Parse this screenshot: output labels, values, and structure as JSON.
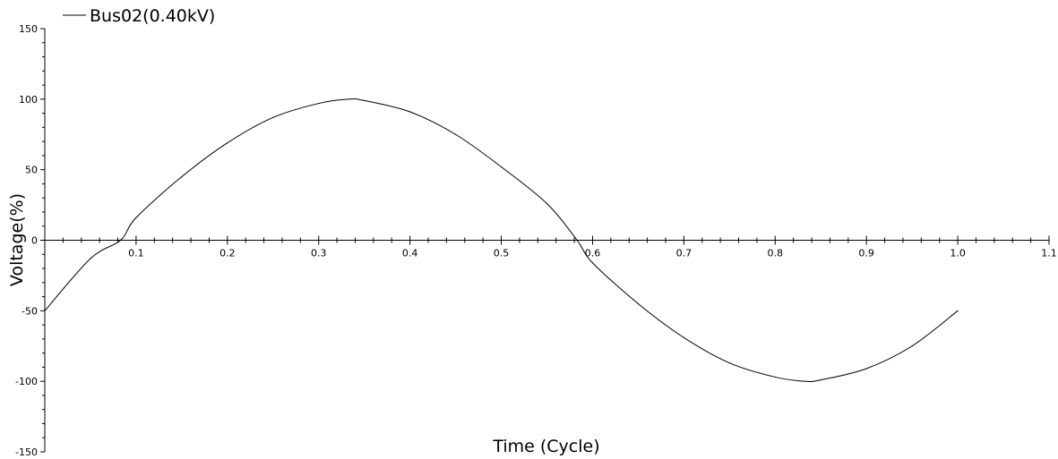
{
  "chart_data": {
    "type": "line",
    "xlabel": "Time (Cycle)",
    "ylabel": "Voltage(%)",
    "xlim": [
      0,
      1.1
    ],
    "ylim": [
      -150,
      150
    ],
    "x_ticks": [
      "0.1",
      "0.2",
      "0.3",
      "0.4",
      "0.5",
      "0.6",
      "0.7",
      "0.8",
      "0.9",
      "1.0",
      "1.1"
    ],
    "y_ticks": [
      "150",
      "100",
      "50",
      "0",
      "-50",
      "-100",
      "-150"
    ],
    "grid": false,
    "legend_position": "top-left",
    "series": [
      {
        "name": "Bus02(0.40kV)",
        "color": "#000000",
        "x": [
          0.0,
          0.05,
          0.083,
          0.1,
          0.15,
          0.2,
          0.25,
          0.3,
          0.333,
          0.35,
          0.4,
          0.45,
          0.5,
          0.55,
          0.583,
          0.6,
          0.65,
          0.7,
          0.75,
          0.8,
          0.833,
          0.85,
          0.9,
          0.95,
          1.0
        ],
        "values": [
          -50,
          -13,
          0,
          16,
          45,
          69,
          87,
          97,
          100,
          99,
          91,
          75,
          52,
          26,
          0,
          -16,
          -45,
          -69,
          -87,
          -97,
          -100,
          -99,
          -91,
          -75,
          -50
        ]
      }
    ]
  }
}
